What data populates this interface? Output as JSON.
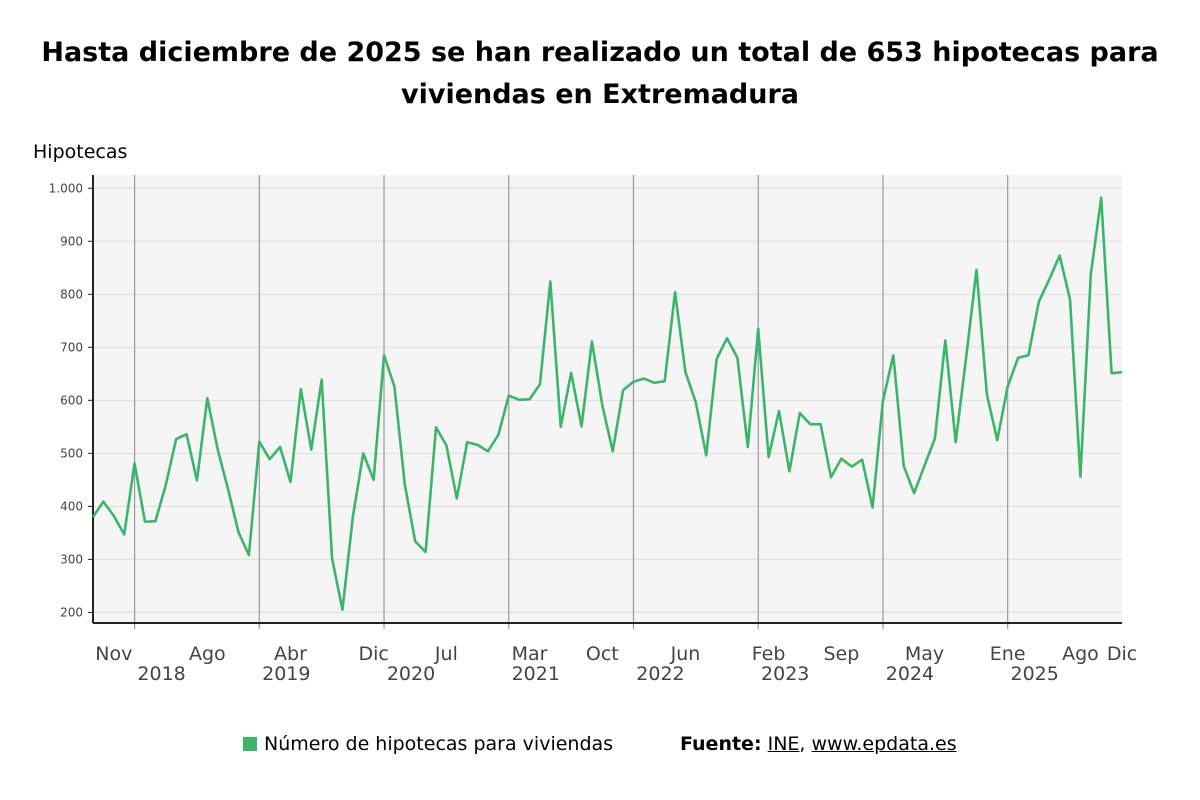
{
  "title": {
    "line1": "Hasta diciembre de 2025 se han realizado un total de 653 hipotecas para",
    "line2": "viviendas en Extremadura"
  },
  "colors": {
    "series": "#3cb46a",
    "plot_bg": "#f5f5f5",
    "grid": "#dddddd",
    "year_line": "#999999",
    "axis": "#222222"
  },
  "chart_data": {
    "type": "line",
    "ylabel": "Hipotecas",
    "ylim": [
      180,
      1025
    ],
    "yticks": [
      200,
      300,
      400,
      500,
      600,
      700,
      800,
      900,
      1000
    ],
    "ytick_labels": [
      "200",
      "300",
      "400",
      "500",
      "600",
      "700",
      "800",
      "900",
      "1.000"
    ],
    "grid": true,
    "x_start": "2017-09",
    "x_end": "2025-12",
    "month_ticks": [
      {
        "month": "Nov",
        "index": 2
      },
      {
        "month": "Ago",
        "index": 11
      },
      {
        "month": "Abr",
        "index": 19
      },
      {
        "month": "Dic",
        "index": 27
      },
      {
        "month": "Jul",
        "index": 34
      },
      {
        "month": "Mar",
        "index": 42
      },
      {
        "month": "Oct",
        "index": 49
      },
      {
        "month": "Jun",
        "index": 57
      },
      {
        "month": "Feb",
        "index": 65
      },
      {
        "month": "Sep",
        "index": 72
      },
      {
        "month": "May",
        "index": 80
      },
      {
        "month": "Ene",
        "index": 88
      },
      {
        "month": "Ago",
        "index": 95
      },
      {
        "month": "Dic",
        "index": 99
      }
    ],
    "year_ticks": [
      {
        "year": "2018",
        "index": 4
      },
      {
        "year": "2019",
        "index": 16
      },
      {
        "year": "2020",
        "index": 28
      },
      {
        "year": "2021",
        "index": 40
      },
      {
        "year": "2022",
        "index": 52
      },
      {
        "year": "2023",
        "index": 64
      },
      {
        "year": "2024",
        "index": 76
      },
      {
        "year": "2025",
        "index": 88
      }
    ],
    "series": [
      {
        "name": "Número de hipotecas para viviendas",
        "values": [
          380,
          409,
          382,
          347,
          481,
          371,
          372,
          440,
          527,
          536,
          449,
          604,
          507,
          432,
          351,
          308,
          522,
          489,
          512,
          446,
          621,
          507,
          639,
          302,
          205,
          380,
          500,
          450,
          685,
          626,
          441,
          334,
          314,
          549,
          515,
          415,
          521,
          516,
          504,
          535,
          609,
          601,
          602,
          630,
          824,
          550,
          652,
          551,
          711,
          591,
          504,
          619,
          635,
          641,
          633,
          636,
          804,
          653,
          596,
          496,
          678,
          717,
          680,
          512,
          735,
          493,
          580,
          466,
          576,
          555,
          555,
          455,
          490,
          475,
          488,
          398,
          599,
          685,
          476,
          425,
          477,
          528,
          713,
          521,
          680,
          846,
          611,
          525,
          626,
          680,
          685,
          786,
          828,
          873,
          790,
          456,
          838,
          982,
          651,
          653
        ]
      }
    ]
  },
  "legend": {
    "label": "Número de hipotecas para viviendas"
  },
  "source": {
    "label": "Fuente:",
    "org": "INE",
    "sep": ",",
    "site": "www.epdata.es"
  }
}
